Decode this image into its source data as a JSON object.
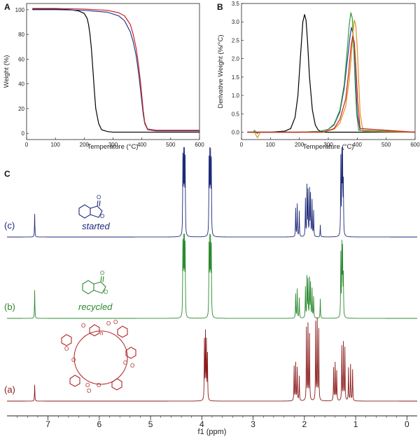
{
  "chart_data": [
    {
      "panel": "A",
      "type": "line",
      "xlabel": "Temperature (°C)",
      "ylabel": "Weight (%)",
      "xlim": [
        0,
        600
      ],
      "ylim": [
        -5,
        105
      ],
      "xticks": [
        0,
        100,
        200,
        300,
        400,
        500,
        600
      ],
      "yticks": [
        0,
        20,
        40,
        60,
        80,
        100
      ],
      "series": [
        {
          "color": "#000000",
          "x": [
            20,
            100,
            150,
            180,
            200,
            210,
            215,
            220,
            225,
            230,
            235,
            240,
            250,
            260,
            280,
            300,
            400,
            600
          ],
          "y": [
            100.5,
            100.5,
            100,
            99,
            97,
            93,
            88,
            80,
            68,
            52,
            35,
            20,
            8,
            3,
            1.5,
            1,
            1,
            1
          ]
        },
        {
          "color": "#2a3f8f",
          "x": [
            20,
            100,
            200,
            280,
            320,
            340,
            360,
            370,
            380,
            385,
            390,
            395,
            400,
            405,
            410,
            420,
            450,
            600
          ],
          "y": [
            100,
            100,
            99.5,
            98,
            95,
            91,
            82,
            74,
            63,
            55,
            46,
            36,
            25,
            15,
            8,
            3,
            2,
            2
          ]
        },
        {
          "color": "#cc2222",
          "x": [
            20,
            100,
            200,
            280,
            320,
            340,
            360,
            370,
            380,
            385,
            390,
            395,
            400,
            405,
            410,
            420,
            450,
            600
          ],
          "y": [
            101,
            101,
            100.5,
            99.5,
            97.5,
            95,
            88,
            80,
            69,
            61,
            52,
            42,
            30,
            18,
            9,
            3.5,
            2.5,
            2.5
          ]
        }
      ]
    },
    {
      "panel": "B",
      "type": "line",
      "xlabel": "Temperature (°C)",
      "ylabel": "Derivative Weight (%/°C)",
      "xlim": [
        0,
        600
      ],
      "ylim": [
        -0.2,
        3.5
      ],
      "xticks": [
        0,
        100,
        200,
        300,
        400,
        500,
        600
      ],
      "yticks": [
        0.0,
        0.5,
        1.0,
        1.5,
        2.0,
        2.5,
        3.0,
        3.5
      ],
      "series": [
        {
          "color": "#000000",
          "x": [
            20,
            100,
            150,
            170,
            185,
            195,
            205,
            212,
            218,
            223,
            228,
            235,
            245,
            255,
            265,
            275,
            290,
            300,
            600
          ],
          "y": [
            0,
            0,
            0.03,
            0.1,
            0.4,
            1.0,
            2.2,
            3.0,
            3.2,
            3.05,
            2.5,
            1.5,
            0.6,
            0.2,
            0.06,
            0.02,
            0,
            0,
            0
          ]
        },
        {
          "color": "#2a3f8f",
          "x": [
            20,
            200,
            270,
            300,
            320,
            340,
            355,
            365,
            375,
            380,
            385,
            390,
            395,
            400,
            410,
            600
          ],
          "y": [
            0,
            0,
            0.02,
            0.08,
            0.2,
            0.55,
            1.2,
            1.9,
            2.6,
            2.85,
            2.7,
            2.1,
            1.3,
            0.5,
            0.05,
            0
          ]
        },
        {
          "color": "#2e9b3e",
          "x": [
            20,
            40,
            45,
            50,
            55,
            60,
            200,
            270,
            300,
            320,
            340,
            355,
            365,
            372,
            378,
            383,
            388,
            393,
            398,
            405,
            600
          ],
          "y": [
            0,
            0,
            0.05,
            0.0,
            -0.04,
            0,
            0,
            0.02,
            0.08,
            0.22,
            0.6,
            1.3,
            2.2,
            2.9,
            3.25,
            3.1,
            2.3,
            1.3,
            0.5,
            0.05,
            0
          ]
        },
        {
          "color": "#e0901a",
          "x": [
            20,
            45,
            50,
            55,
            60,
            65,
            200,
            280,
            320,
            340,
            360,
            372,
            380,
            385,
            390,
            395,
            400,
            405,
            410,
            420,
            600
          ],
          "y": [
            0,
            0,
            -0.08,
            -0.15,
            -0.08,
            0,
            0,
            0,
            0.08,
            0.25,
            0.7,
            1.4,
            2.1,
            2.7,
            3.05,
            2.9,
            2.3,
            1.4,
            0.5,
            0.02,
            0
          ]
        },
        {
          "color": "#cc2222",
          "x": [
            20,
            200,
            280,
            320,
            340,
            360,
            370,
            378,
            384,
            390,
            396,
            402,
            410,
            600
          ],
          "y": [
            0,
            0,
            0,
            0.1,
            0.35,
            0.9,
            1.6,
            2.3,
            2.6,
            2.45,
            1.7,
            0.8,
            0.1,
            0
          ]
        }
      ]
    },
    {
      "panel": "C",
      "type": "line",
      "xlabel": "f1 (ppm)",
      "xlim": [
        7.8,
        -0.2
      ],
      "xticks": [
        7,
        6,
        5,
        4,
        3,
        2,
        1,
        0
      ],
      "series": [
        {
          "name": "(c)",
          "structure_label": "started",
          "color": "#1e2a78",
          "peaks": [
            [
              7.26,
              0.27
            ],
            [
              4.37,
              0.88
            ],
            [
              4.355,
              0.92
            ],
            [
              4.34,
              0.9
            ],
            [
              4.325,
              0.86
            ],
            [
              3.86,
              0.85
            ],
            [
              3.845,
              0.9
            ],
            [
              3.83,
              0.88
            ],
            [
              3.815,
              0.84
            ],
            [
              2.17,
              0.33
            ],
            [
              2.14,
              0.38
            ],
            [
              2.1,
              0.3
            ],
            [
              1.98,
              0.44
            ],
            [
              1.95,
              0.58
            ],
            [
              1.93,
              0.52
            ],
            [
              1.9,
              0.54
            ],
            [
              1.88,
              0.48
            ],
            [
              1.85,
              0.42
            ],
            [
              1.82,
              0.3
            ],
            [
              1.69,
              0.14
            ],
            [
              1.29,
              0.9
            ],
            [
              1.27,
              1.0
            ],
            [
              1.255,
              0.92
            ],
            [
              1.24,
              0.6
            ]
          ]
        },
        {
          "name": "(b)",
          "structure_label": "recycled",
          "color": "#2c8a30",
          "peaks": [
            [
              7.26,
              0.35
            ],
            [
              4.37,
              0.88
            ],
            [
              4.355,
              0.92
            ],
            [
              4.34,
              0.9
            ],
            [
              4.325,
              0.86
            ],
            [
              3.86,
              0.85
            ],
            [
              3.845,
              0.9
            ],
            [
              3.83,
              0.88
            ],
            [
              3.815,
              0.84
            ],
            [
              2.17,
              0.3
            ],
            [
              2.14,
              0.36
            ],
            [
              2.1,
              0.25
            ],
            [
              1.98,
              0.38
            ],
            [
              1.95,
              0.5
            ],
            [
              1.93,
              0.46
            ],
            [
              1.9,
              0.48
            ],
            [
              1.88,
              0.42
            ],
            [
              1.85,
              0.36
            ],
            [
              1.82,
              0.26
            ],
            [
              1.69,
              0.24
            ],
            [
              1.29,
              0.78
            ],
            [
              1.27,
              0.86
            ],
            [
              1.255,
              0.8
            ],
            [
              1.24,
              0.5
            ]
          ]
        },
        {
          "name": "(a)",
          "structure_label": "",
          "color": "#8a1a1a",
          "peaks": [
            [
              7.26,
              0.2
            ],
            [
              3.95,
              0.72
            ],
            [
              3.93,
              0.8
            ],
            [
              3.91,
              0.7
            ],
            [
              3.89,
              0.55
            ],
            [
              2.2,
              0.42
            ],
            [
              2.17,
              0.46
            ],
            [
              2.14,
              0.4
            ],
            [
              2.1,
              0.3
            ],
            [
              1.96,
              0.88
            ],
            [
              1.93,
              0.92
            ],
            [
              1.9,
              0.8
            ],
            [
              1.78,
              0.95
            ],
            [
              1.75,
              0.98
            ],
            [
              1.72,
              0.86
            ],
            [
              1.43,
              0.4
            ],
            [
              1.4,
              0.46
            ],
            [
              1.37,
              0.36
            ],
            [
              1.27,
              0.66
            ],
            [
              1.24,
              0.7
            ],
            [
              1.21,
              0.64
            ],
            [
              1.14,
              0.4
            ],
            [
              1.1,
              0.44
            ],
            [
              1.06,
              0.38
            ]
          ]
        }
      ]
    }
  ],
  "labels": {
    "panel_a": "A",
    "panel_b": "B",
    "panel_c": "C"
  },
  "structure_c": {
    "carbonyl_o": "O",
    "ring_o": "O"
  },
  "structure_b": {
    "carbonyl_o": "O",
    "ring_o": "O"
  },
  "macrocycle": {
    "o_labels": [
      "O",
      "O",
      "O",
      "O",
      "O",
      "O",
      "O",
      "O",
      "O",
      "O"
    ],
    "repeat": "n"
  }
}
